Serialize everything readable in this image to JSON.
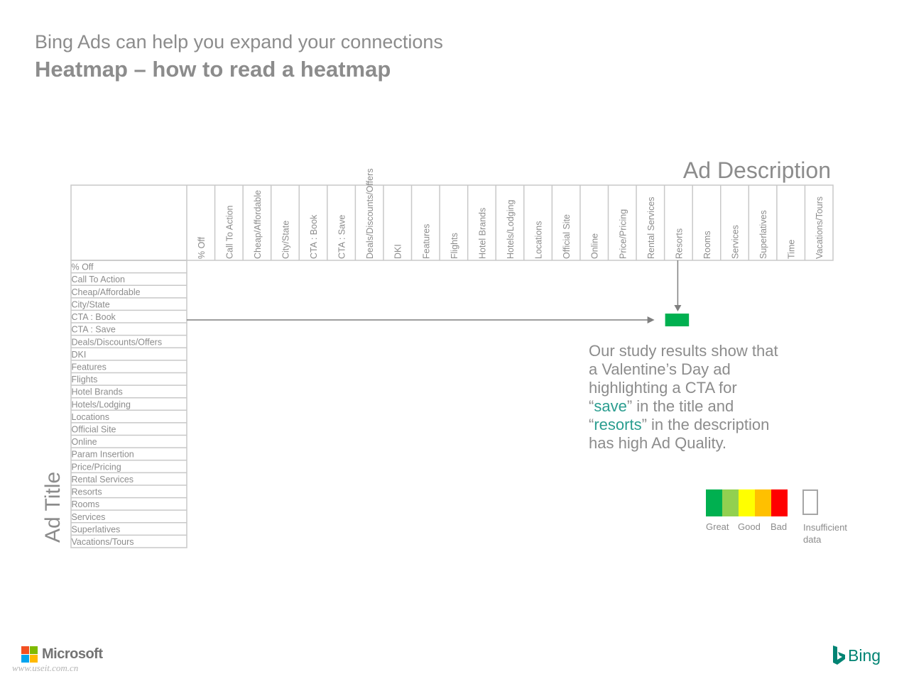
{
  "header": {
    "subtitle": "Bing Ads can help you expand your connections",
    "title": "Heatmap – how to read a heatmap"
  },
  "axes": {
    "top_label": "Ad Description",
    "left_label": "Ad Title"
  },
  "columns": [
    "% Off",
    "Call To Action",
    "Cheap/Affordable",
    "City/State",
    "CTA : Book",
    "CTA : Save",
    "Deals/Discounts/Offers",
    "DKI",
    "Features",
    "Flights",
    "Hotel Brands",
    "Hotels/Lodging",
    "Locations",
    "Official Site",
    "Online",
    "Price/Pricing",
    "Rental Services",
    "Resorts",
    "Rooms",
    "Services",
    "Superlatives",
    "Time",
    "Vacations/Tours"
  ],
  "rows": [
    "% Off",
    "Call To Action",
    "Cheap/Affordable",
    "City/State",
    "CTA : Book",
    "CTA : Save",
    "Deals/Discounts/Offers",
    "DKI",
    "Features",
    "Flights",
    "Hotel Brands",
    "Hotels/Lodging",
    "Locations",
    "Official Site",
    "Online",
    "Param Insertion",
    "Price/Pricing",
    "Rental Services",
    "Resorts",
    "Rooms",
    "Services",
    "Superlatives",
    "Vacations/Tours"
  ],
  "highlight": {
    "row": "CTA : Save",
    "column": "Resorts",
    "rating": "Great",
    "color": "#00b050"
  },
  "note": {
    "line1": "Our study results show that a Valentine’s Day ad highlighting a CTA for ",
    "q1_open": "“",
    "term1": "save",
    "q1_close": "”",
    "line2": " in the title and ",
    "q2_open": "“",
    "term2": "resorts",
    "q2_close": "”",
    "line3": " in the description has high Ad Quality."
  },
  "legend": {
    "items": [
      {
        "label": "Great",
        "color": "#00b050"
      },
      {
        "label": "",
        "color": "#92d050"
      },
      {
        "label": "Good",
        "color": "#ffff00"
      },
      {
        "label": "",
        "color": "#ffc000"
      },
      {
        "label": "Bad",
        "color": "#ff0000"
      }
    ],
    "insufficient_label": "Insufficient data"
  },
  "footer": {
    "microsoft": "Microsoft",
    "bing": "Bing",
    "watermark": "www.useit.com.cn"
  },
  "colors": {
    "ms_red": "#f25022",
    "ms_green": "#7fba00",
    "ms_blue": "#00a4ef",
    "ms_yellow": "#ffb900",
    "bing_teal": "#008373"
  }
}
